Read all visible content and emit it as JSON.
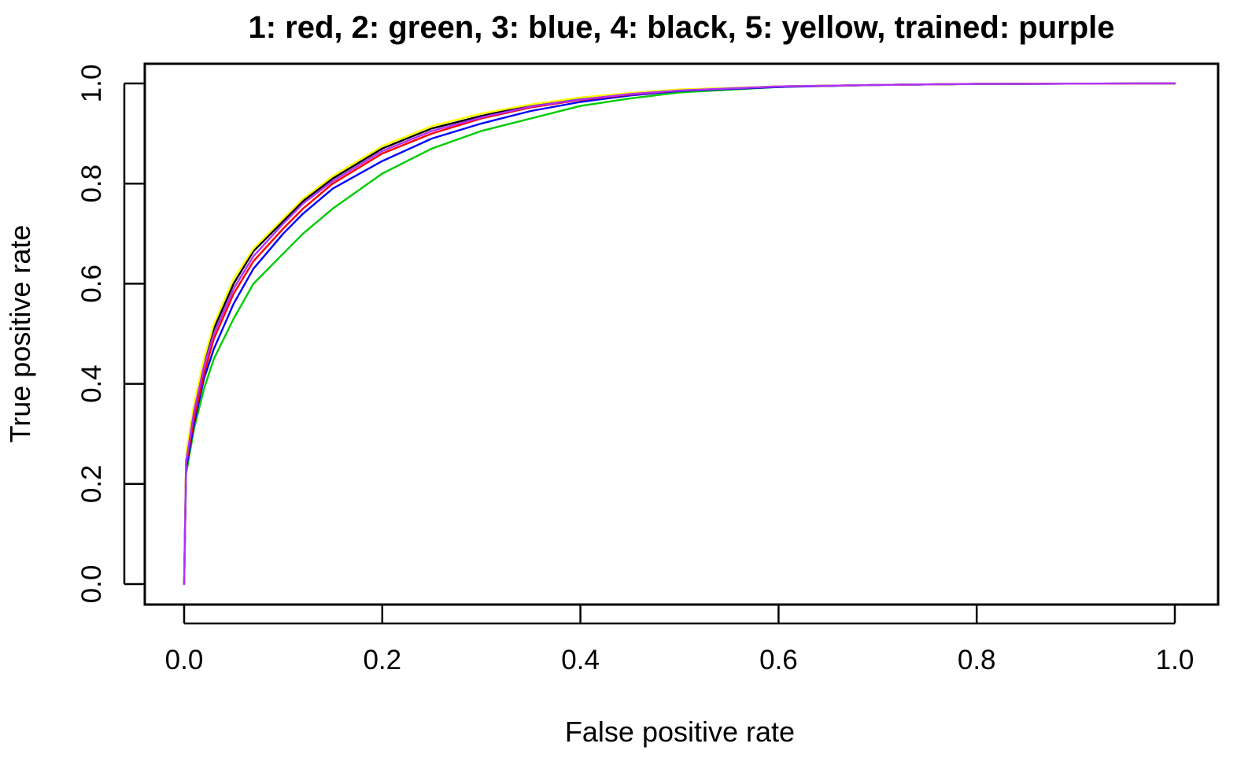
{
  "chart_data": {
    "type": "line",
    "title": "1: red, 2: green, 3: blue, 4: black, 5: yellow, trained: purple",
    "xlabel": "False positive rate",
    "ylabel": "True positive rate",
    "xlim": [
      0,
      1
    ],
    "ylim": [
      0,
      1
    ],
    "x_ticks": [
      "0.0",
      "0.2",
      "0.4",
      "0.6",
      "0.8",
      "1.0"
    ],
    "y_ticks": [
      "0.0",
      "0.2",
      "0.4",
      "0.6",
      "0.8",
      "1.0"
    ],
    "grid": false,
    "series": [
      {
        "color": "#00cc00",
        "x": [
          0,
          0.002,
          0.01,
          0.02,
          0.03,
          0.05,
          0.07,
          0.1,
          0.12,
          0.15,
          0.2,
          0.25,
          0.3,
          0.35,
          0.4,
          0.45,
          0.5,
          0.6,
          0.7,
          0.8,
          1.0
        ],
        "y": [
          0,
          0.22,
          0.31,
          0.39,
          0.45,
          0.53,
          0.6,
          0.66,
          0.7,
          0.75,
          0.82,
          0.87,
          0.905,
          0.93,
          0.955,
          0.97,
          0.982,
          0.993,
          0.997,
          0.999,
          1.0
        ]
      },
      {
        "color": "#0000ff",
        "x": [
          0,
          0.002,
          0.01,
          0.02,
          0.03,
          0.05,
          0.07,
          0.1,
          0.12,
          0.15,
          0.2,
          0.25,
          0.3,
          0.35,
          0.4,
          0.45,
          0.5,
          0.6,
          0.7,
          0.8,
          1.0
        ],
        "y": [
          0,
          0.23,
          0.32,
          0.41,
          0.47,
          0.56,
          0.63,
          0.7,
          0.74,
          0.79,
          0.845,
          0.89,
          0.92,
          0.945,
          0.963,
          0.976,
          0.985,
          0.993,
          0.997,
          0.999,
          1.0
        ]
      },
      {
        "color": "#ff0000",
        "x": [
          0,
          0.002,
          0.01,
          0.02,
          0.03,
          0.05,
          0.07,
          0.1,
          0.12,
          0.15,
          0.2,
          0.25,
          0.3,
          0.35,
          0.4,
          0.45,
          0.5,
          0.6,
          0.7,
          0.8,
          1.0
        ],
        "y": [
          0,
          0.24,
          0.33,
          0.42,
          0.49,
          0.58,
          0.645,
          0.71,
          0.75,
          0.8,
          0.86,
          0.9,
          0.93,
          0.952,
          0.967,
          0.978,
          0.986,
          0.994,
          0.997,
          0.999,
          1.0
        ]
      },
      {
        "color": "#000000",
        "x": [
          0,
          0.002,
          0.01,
          0.02,
          0.03,
          0.05,
          0.07,
          0.1,
          0.12,
          0.15,
          0.2,
          0.25,
          0.3,
          0.35,
          0.4,
          0.45,
          0.5,
          0.6,
          0.7,
          0.8,
          1.0
        ],
        "y": [
          0,
          0.25,
          0.35,
          0.44,
          0.51,
          0.6,
          0.665,
          0.725,
          0.765,
          0.81,
          0.87,
          0.91,
          0.935,
          0.956,
          0.97,
          0.98,
          0.987,
          0.994,
          0.997,
          0.999,
          1.0
        ]
      },
      {
        "color": "#ffff00",
        "x": [
          0,
          0.002,
          0.01,
          0.02,
          0.03,
          0.05,
          0.07,
          0.1,
          0.12,
          0.15,
          0.2,
          0.25,
          0.3,
          0.35,
          0.4,
          0.45,
          0.5,
          0.6,
          0.7,
          0.8,
          1.0
        ],
        "y": [
          0,
          0.26,
          0.36,
          0.45,
          0.52,
          0.61,
          0.67,
          0.73,
          0.77,
          0.815,
          0.875,
          0.915,
          0.94,
          0.958,
          0.972,
          0.981,
          0.988,
          0.994,
          0.997,
          0.999,
          1.0
        ]
      },
      {
        "color": "#b030ff",
        "x": [
          0,
          0.002,
          0.01,
          0.02,
          0.03,
          0.05,
          0.07,
          0.1,
          0.12,
          0.15,
          0.2,
          0.25,
          0.3,
          0.35,
          0.4,
          0.45,
          0.5,
          0.6,
          0.7,
          0.8,
          1.0
        ],
        "y": [
          0,
          0.245,
          0.345,
          0.435,
          0.5,
          0.59,
          0.655,
          0.72,
          0.76,
          0.805,
          0.865,
          0.905,
          0.932,
          0.954,
          0.968,
          0.979,
          0.986,
          0.994,
          0.997,
          0.999,
          1.0
        ]
      }
    ]
  }
}
